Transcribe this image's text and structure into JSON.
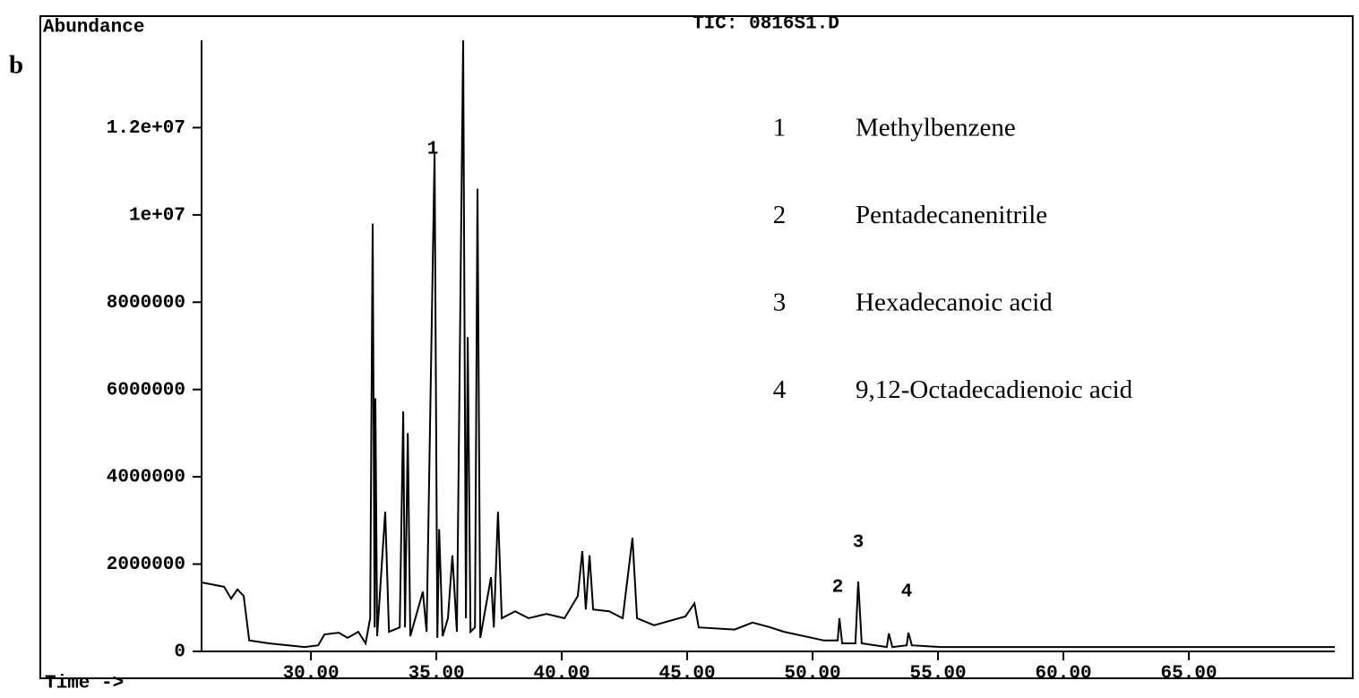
{
  "panel_label": "b",
  "chart_data": {
    "type": "line",
    "title": "TIC: 0816S1.D",
    "y_label": "Abundance",
    "x_label": "Time ->",
    "color": "#000000",
    "grid": false,
    "xlim": [
      25.64,
      70.82
    ],
    "ylim": [
      0,
      14000000
    ],
    "xticks": [
      {
        "value": 30,
        "label": "30.00"
      },
      {
        "value": 35,
        "label": "35.00"
      },
      {
        "value": 40,
        "label": "40.00"
      },
      {
        "value": 45,
        "label": "45.00"
      },
      {
        "value": 50,
        "label": "50.00"
      },
      {
        "value": 55,
        "label": "55.00"
      },
      {
        "value": 60,
        "label": "60.00"
      },
      {
        "value": 65,
        "label": "65.00"
      }
    ],
    "yticks": [
      0,
      2000000,
      4000000,
      6000000,
      8000000,
      {
        "value": 10000000,
        "label": "1e+07"
      },
      {
        "value": 12000000,
        "label": "1.2e+07"
      }
    ],
    "x": [
      25.64,
      26.54,
      26.82,
      27.07,
      27.32,
      27.54,
      28.32,
      29.75,
      30.29,
      30.54,
      31.11,
      31.46,
      31.89,
      32.18,
      32.36,
      32.46,
      32.54,
      32.57,
      32.64,
      32.96,
      33.11,
      33.54,
      33.68,
      33.75,
      33.86,
      33.96,
      34.46,
      34.61,
      34.93,
      35.04,
      35.11,
      35.25,
      35.46,
      35.64,
      35.82,
      36.07,
      36.18,
      36.25,
      36.36,
      36.54,
      36.64,
      36.75,
      37.18,
      37.29,
      37.46,
      37.61,
      38.14,
      38.68,
      39.39,
      40.11,
      40.64,
      40.82,
      40.96,
      41.11,
      41.25,
      41.89,
      42.43,
      42.82,
      43.0,
      43.68,
      44.93,
      45.29,
      45.46,
      46.89,
      47.61,
      48.32,
      48.86,
      50.46,
      51.0,
      51.07,
      51.18,
      51.71,
      51.82,
      51.96,
      52.96,
      53.04,
      53.18,
      53.75,
      53.82,
      53.96,
      55.11,
      56.89,
      70.82
    ],
    "values": [
      1580000,
      1480000,
      1210000,
      1420000,
      1270000,
      250000,
      185000,
      100000,
      140000,
      390000,
      430000,
      310000,
      450000,
      185000,
      760000,
      9800000,
      550000,
      5800000,
      350000,
      3200000,
      450000,
      550000,
      5500000,
      550000,
      5000000,
      350000,
      1370000,
      450000,
      11400000,
      310000,
      2800000,
      350000,
      760000,
      2200000,
      450000,
      14000000,
      760000,
      7200000,
      450000,
      550000,
      10600000,
      310000,
      1700000,
      550000,
      3200000,
      760000,
      920000,
      760000,
      860000,
      760000,
      1270000,
      2300000,
      960000,
      2200000,
      960000,
      920000,
      760000,
      2600000,
      760000,
      600000,
      800000,
      1100000,
      550000,
      500000,
      660000,
      550000,
      450000,
      250000,
      250000,
      760000,
      185000,
      185000,
      1600000,
      185000,
      100000,
      410000,
      100000,
      140000,
      430000,
      140000,
      100000,
      100000,
      100000
    ],
    "compounds": [
      {
        "label": "1",
        "name": "Methylbenzene"
      },
      {
        "label": "2",
        "name": "Pentadecanenitrile"
      },
      {
        "label": "3",
        "name": "Hexadecanoic acid"
      },
      {
        "label": "4",
        "name": "9,12-Octadecadienoic acid"
      }
    ]
  }
}
